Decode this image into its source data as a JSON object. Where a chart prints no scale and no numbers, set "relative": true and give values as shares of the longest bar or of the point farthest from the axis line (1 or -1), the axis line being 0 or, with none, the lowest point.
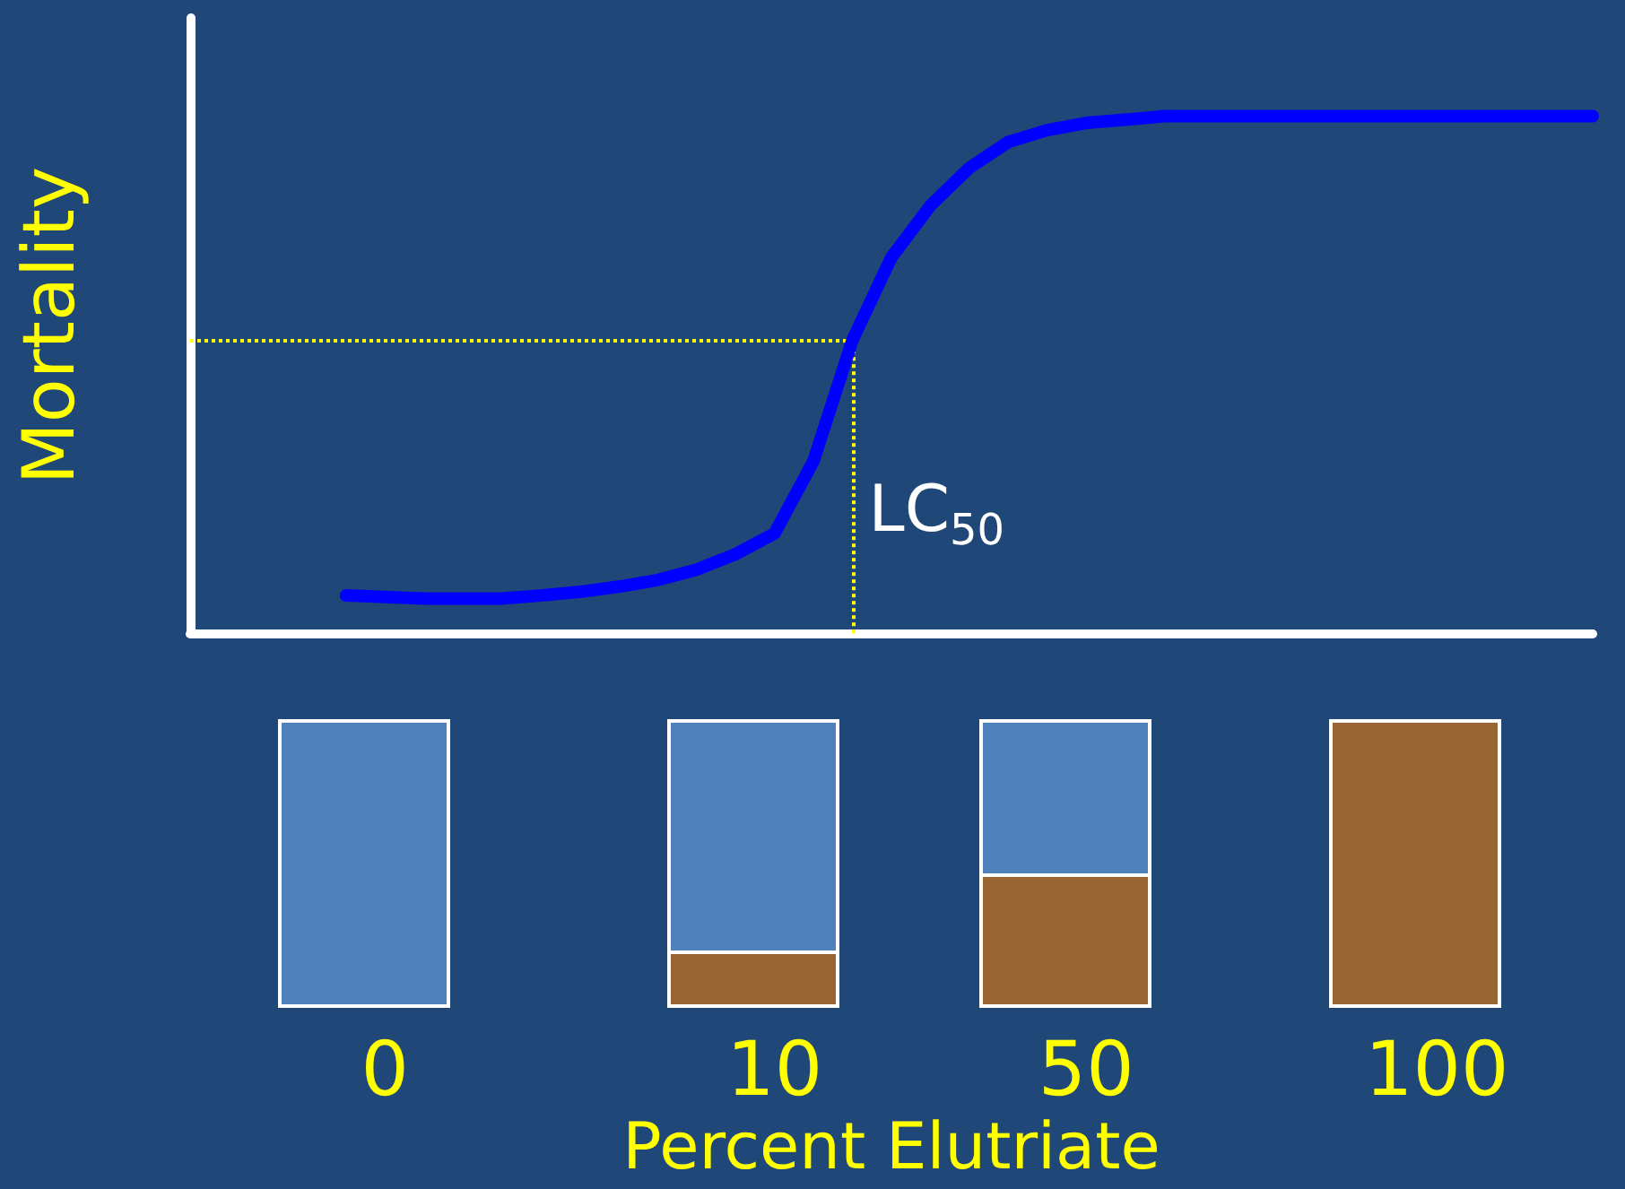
{
  "chart_data": {
    "type": "line",
    "relative": true,
    "xlabel": "Percent Elutriate",
    "ylabel": "Mortality",
    "categories": [
      null,
      null,
      null,
      null,
      null,
      "0",
      null,
      null,
      null,
      null,
      null,
      null,
      null,
      null,
      null,
      "10",
      null,
      null,
      null,
      null,
      null,
      null,
      null,
      "50",
      null,
      null,
      null,
      null,
      null,
      null,
      null,
      null,
      "100",
      null,
      null,
      null,
      null
    ],
    "series": [
      {
        "color": "#0000ff",
        "values": [
          null,
          null,
          null,
          null,
          0.073,
          0.07,
          0.067,
          0.067,
          0.067,
          0.073,
          0.08,
          0.09,
          0.103,
          0.123,
          0.153,
          0.193,
          0.333,
          0.567,
          0.727,
          0.827,
          0.9,
          0.95,
          0.973,
          0.987,
          0.993,
          1,
          1,
          1,
          1,
          1,
          1,
          1,
          1,
          1,
          1,
          1,
          1
        ]
      }
    ],
    "ref_lines": [
      {
        "axis": "y",
        "value": 0.567,
        "color": "#ffff00",
        "line_style": "dotted"
      }
    ],
    "annotations": [
      "LC$_{50}$"
    ],
    "line_style": "solid"
  }
}
